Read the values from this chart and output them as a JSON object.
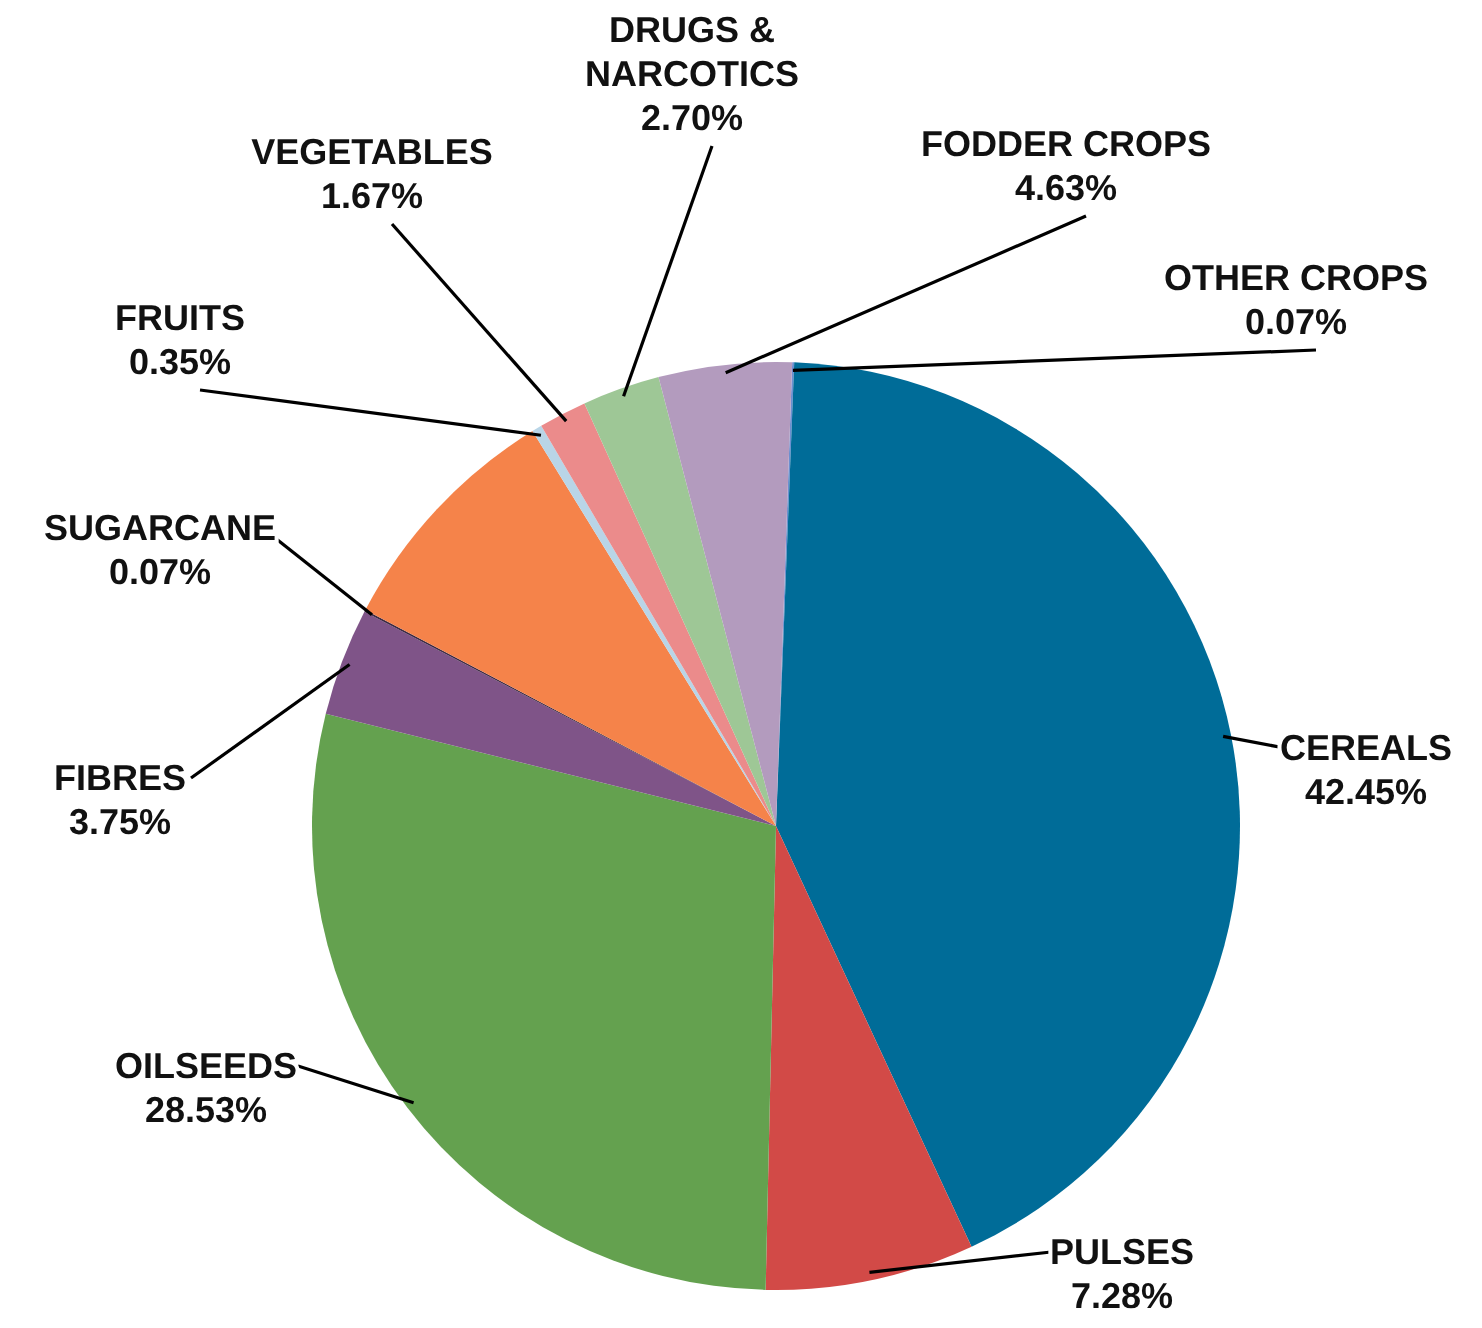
{
  "chart_data": {
    "type": "pie",
    "categories": [
      "OTHER CROPS",
      "CEREALS",
      "PULSES",
      "OILSEEDS",
      "FIBRES",
      "SUGARCANE",
      null,
      "FRUITS",
      "VEGETABLES",
      "DRUGS & NARCOTICS",
      "FODDER CROPS"
    ],
    "values": [
      0.07,
      42.45,
      7.28,
      28.53,
      3.75,
      0.07,
      8.5,
      0.35,
      1.67,
      2.7,
      4.63
    ],
    "value_labels": [
      "0.07%",
      "42.45%",
      "7.28%",
      "28.53%",
      "3.75%",
      "0.07%",
      null,
      "0.35%",
      "1.67%",
      "2.70%",
      "4.63%"
    ],
    "colors": [
      "#6b8fd0",
      "#006c98",
      "#d24a47",
      "#64a14f",
      "#7f5488",
      "#3d2a45",
      "#f5834a",
      "#b9d5e7",
      "#eb8b8b",
      "#9ec796",
      "#b39bbe"
    ]
  }
}
